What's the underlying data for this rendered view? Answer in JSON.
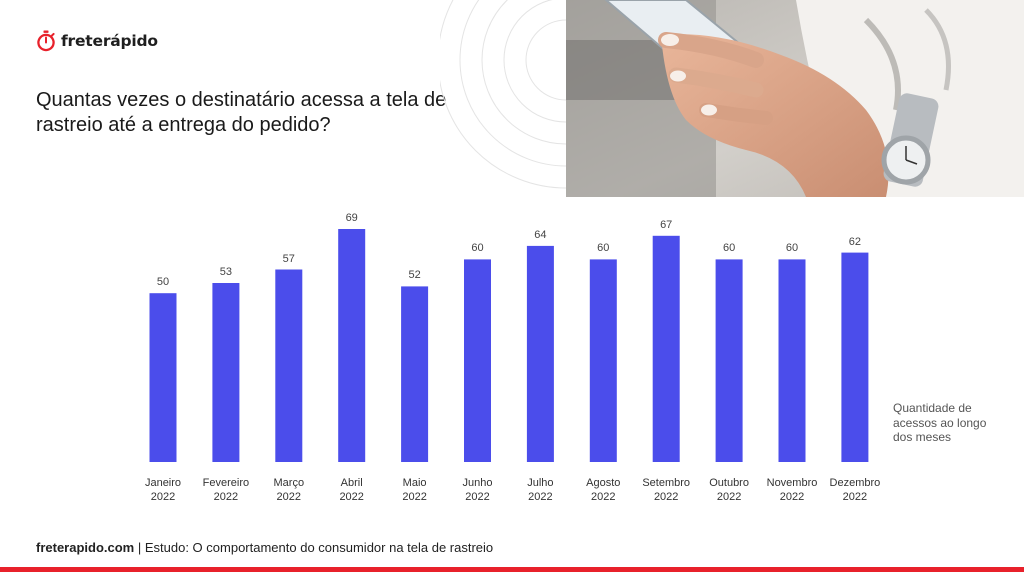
{
  "brand": {
    "logo_text": "freterápido",
    "accent_color": "#e8212b",
    "logo_icon": "stopwatch-icon"
  },
  "title": "Quantas vezes o destinatário acessa a tela de rastreio até a entrega do pedido?",
  "photo": {
    "icon": "hands-holding-phone-photo"
  },
  "chart_data": {
    "type": "bar",
    "title": "Quantas vezes o destinatário acessa a tela de rastreio até a entrega do pedido?",
    "categories": [
      [
        "Janeiro",
        "2022"
      ],
      [
        "Fevereiro",
        "2022"
      ],
      [
        "Março",
        "2022"
      ],
      [
        "Abril",
        "2022"
      ],
      [
        "Maio",
        "2022"
      ],
      [
        "Junho",
        "2022"
      ],
      [
        "Julho",
        "2022"
      ],
      [
        "Agosto",
        "2022"
      ],
      [
        "Setembro",
        "2022"
      ],
      [
        "Outubro",
        "2022"
      ],
      [
        "Novembro",
        "2022"
      ],
      [
        "Dezembro",
        "2022"
      ]
    ],
    "series": [
      {
        "name": "Quantidade de acessos ao longo dos meses",
        "values": [
          50,
          53,
          57,
          69,
          52,
          60,
          64,
          60,
          67,
          60,
          60,
          62
        ]
      }
    ],
    "ylim": [
      0,
      69
    ],
    "bar_color": "#4b4deb",
    "grid": false,
    "legend": "right",
    "xlabel": "",
    "ylabel": ""
  },
  "legend_note": "Quantidade de acessos ao longo dos meses",
  "footer": {
    "brand": "freterapido.com",
    "separator": " | ",
    "study": "Estudo: O comportamento do consumidor na tela de rastreio"
  }
}
